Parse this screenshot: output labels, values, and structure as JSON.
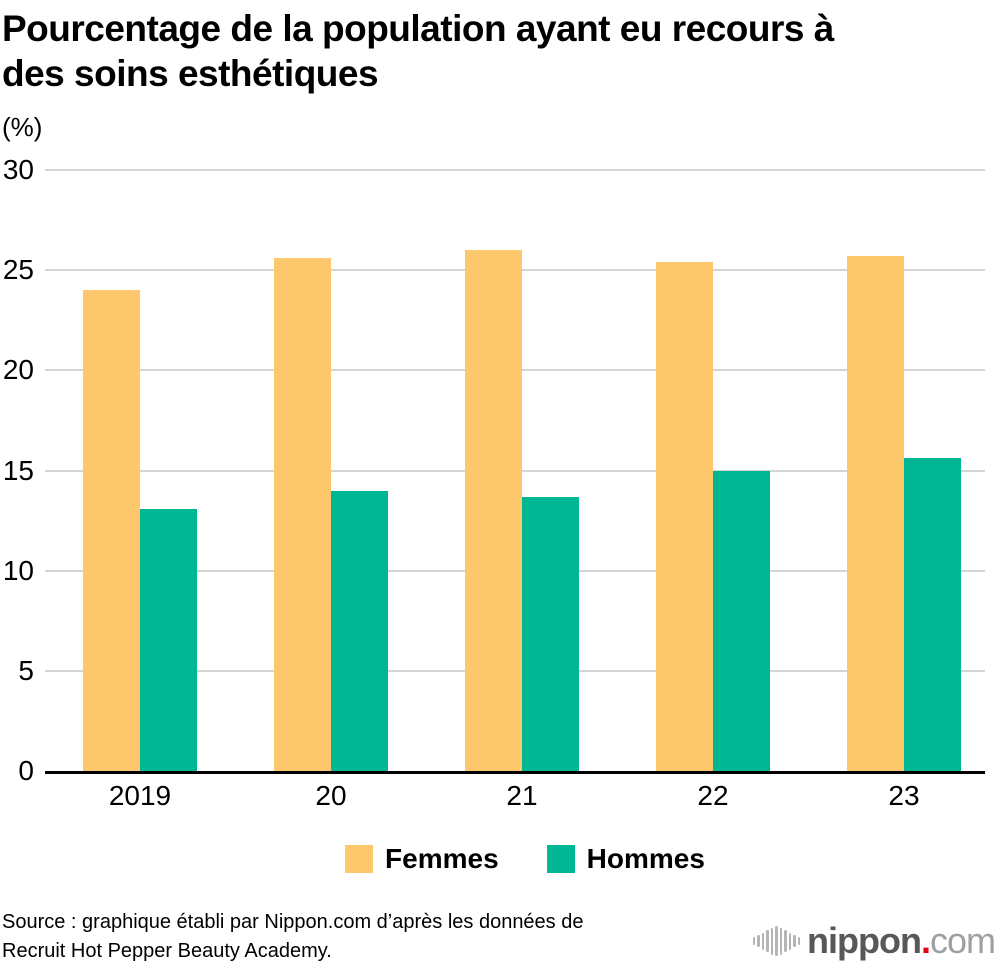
{
  "title_lines": [
    "Pourcentage de la population ayant eu recours à",
    "des soins esthétiques"
  ],
  "unit_label": "(%)",
  "chart_data": {
    "type": "bar",
    "categories": [
      "2019",
      "20",
      "21",
      "22",
      "23"
    ],
    "series": [
      {
        "name": "Femmes",
        "color": "#FCC86B",
        "values": [
          24.0,
          25.6,
          26.0,
          25.4,
          25.7
        ]
      },
      {
        "name": "Hommes",
        "color": "#00B793",
        "values": [
          13.1,
          14.0,
          13.7,
          15.0,
          15.6
        ]
      }
    ],
    "title": "Pourcentage de la population ayant eu recours à des soins esthétiques",
    "xlabel": "",
    "ylabel": "(%)",
    "ylim": [
      0,
      30
    ],
    "yticks": [
      0,
      5,
      10,
      15,
      20,
      25,
      30
    ],
    "grid": true,
    "legend_position": "bottom"
  },
  "source_lines": [
    "Source : graphique établi par Nippon.com d’après les données de",
    "Recruit Hot Pepper Beauty Academy."
  ],
  "logo": {
    "brand": "nippon",
    "dot": ".",
    "tld": "com"
  },
  "colors": {
    "femmes": "#FCC86B",
    "hommes": "#00B793",
    "gridline": "#D5D5D5",
    "axis": "#000000",
    "logo_dark": "#595757",
    "logo_light": "#9E9FA0",
    "logo_red": "#E60012",
    "logo_bars": "#B5B5B6"
  }
}
